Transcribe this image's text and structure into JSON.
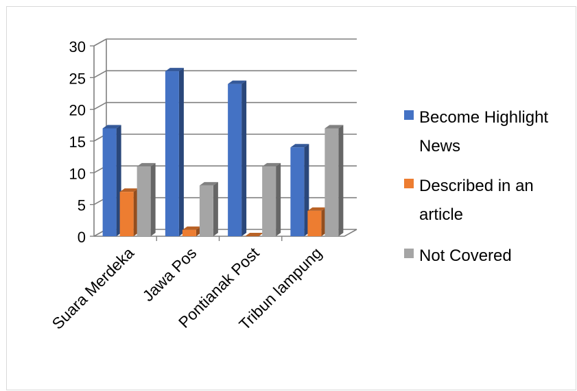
{
  "chart_data": {
    "type": "bar",
    "style": "3d-clustered-column",
    "categories": [
      "Suara Merdeka",
      "Jawa Pos",
      "Pontianak Post",
      "Tribun lampung"
    ],
    "series": [
      {
        "name": "Become Highlight News",
        "values": [
          17,
          26,
          24,
          14
        ],
        "color": "#4472C4"
      },
      {
        "name": "Described in an article",
        "values": [
          7,
          1,
          0,
          4
        ],
        "color": "#ED7D31"
      },
      {
        "name": "Not Covered",
        "values": [
          11,
          8,
          11,
          17
        ],
        "color": "#A5A5A5"
      }
    ],
    "ylim": [
      0,
      30
    ],
    "yticks": [
      0,
      5,
      10,
      15,
      20,
      25,
      30
    ],
    "grid": true,
    "legend": "right",
    "title": "",
    "xlabel": "",
    "ylabel": ""
  }
}
